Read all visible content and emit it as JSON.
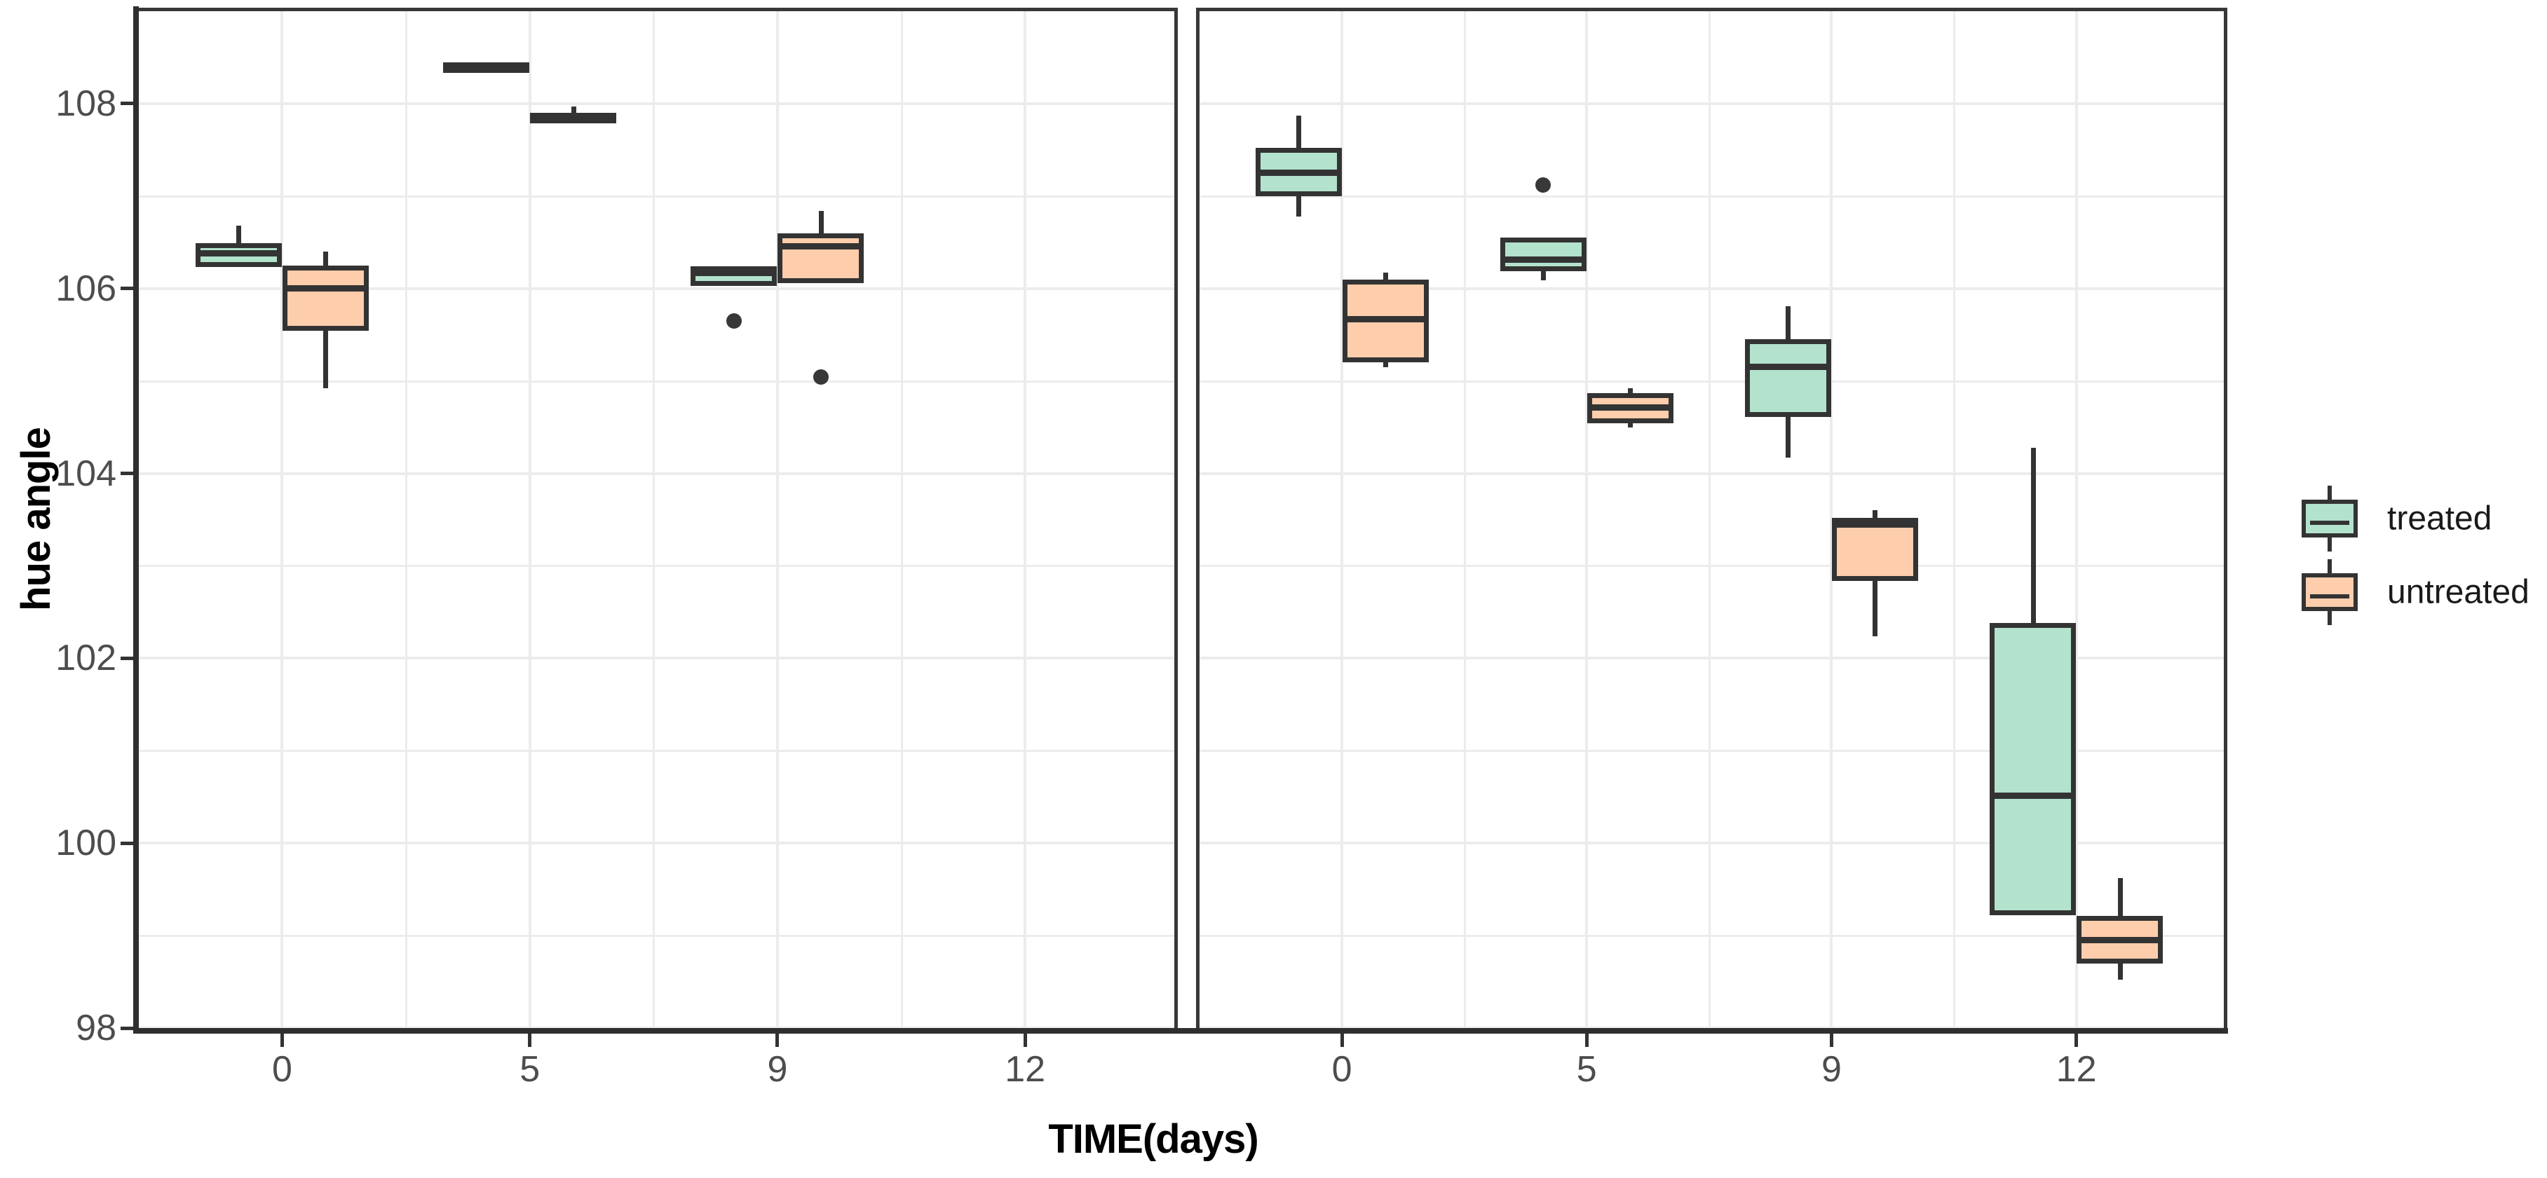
{
  "chart_data": {
    "type": "boxplot",
    "title": "",
    "xlabel": "TIME(days)",
    "ylabel": "hue angle",
    "ylim": [
      98,
      109
    ],
    "y_major_ticks": [
      "98",
      "100",
      "102",
      "104",
      "106",
      "108"
    ],
    "y_major_values": [
      98,
      100,
      102,
      104,
      106,
      108
    ],
    "y_minor_values": [
      99,
      101,
      103,
      105,
      107
    ],
    "categories": [
      "0",
      "5",
      "9",
      "12"
    ],
    "grid": true,
    "legend_position": "right",
    "legend": [
      {
        "label": "treated",
        "fill": "#B3E2CD"
      },
      {
        "label": "untreated",
        "fill": "#FDCDAC"
      }
    ],
    "style": {
      "box_outline": "#333333",
      "grid_color": "#ECECEC",
      "panel_border": "#383838",
      "axis_line": "#2F2F2F",
      "tick_text_color": "#4D4D4D",
      "title_text_color": "#000000",
      "background": "#FFFFFF"
    },
    "facets": [
      {
        "id": "panel-left",
        "series": [
          {
            "name": "treated",
            "fill": "#B3E2CD",
            "boxes": [
              {
                "category": "0",
                "whislo": 106.23,
                "q1": 106.23,
                "med": 106.38,
                "q3": 106.49,
                "whishi": 106.68,
                "fliers": []
              },
              {
                "category": "5",
                "whislo": 108.4,
                "q1": 108.4,
                "med": 108.42,
                "q3": 108.45,
                "whishi": 108.45,
                "fliers": []
              },
              {
                "category": "9",
                "whislo": 106.03,
                "q1": 106.03,
                "med": 106.19,
                "q3": 106.24,
                "whishi": 106.24,
                "fliers": [
                  105.65
                ]
              },
              null
            ]
          },
          {
            "name": "untreated",
            "fill": "#FDCDAC",
            "boxes": [
              {
                "category": "0",
                "whislo": 104.92,
                "q1": 105.54,
                "med": 106.0,
                "q3": 106.25,
                "whishi": 106.4,
                "fliers": []
              },
              {
                "category": "5",
                "whislo": 107.82,
                "q1": 107.83,
                "med": 107.86,
                "q3": 107.9,
                "whishi": 107.97,
                "fliers": []
              },
              {
                "category": "9",
                "whislo": 106.06,
                "q1": 106.06,
                "med": 106.46,
                "q3": 106.6,
                "whishi": 106.84,
                "fliers": [
                  105.04
                ]
              },
              null
            ]
          }
        ]
      },
      {
        "id": "panel-right",
        "series": [
          {
            "name": "treated",
            "fill": "#B3E2CD",
            "boxes": [
              {
                "category": "0",
                "whislo": 106.78,
                "q1": 107.0,
                "med": 107.25,
                "q3": 107.52,
                "whishi": 107.87,
                "fliers": []
              },
              {
                "category": "5",
                "whislo": 106.09,
                "q1": 106.19,
                "med": 106.31,
                "q3": 106.55,
                "whishi": 106.55,
                "fliers": [
                  107.12
                ]
              },
              {
                "category": "9",
                "whislo": 104.17,
                "q1": 104.61,
                "med": 105.15,
                "q3": 105.45,
                "whishi": 105.81,
                "fliers": []
              },
              {
                "category": "12",
                "whislo": 99.22,
                "q1": 99.22,
                "med": 100.51,
                "q3": 102.38,
                "whishi": 104.28,
                "fliers": []
              }
            ]
          },
          {
            "name": "untreated",
            "fill": "#FDCDAC",
            "boxes": [
              {
                "category": "0",
                "whislo": 105.15,
                "q1": 105.2,
                "med": 105.67,
                "q3": 106.1,
                "whishi": 106.17,
                "fliers": []
              },
              {
                "category": "5",
                "whislo": 104.5,
                "q1": 104.54,
                "med": 104.71,
                "q3": 104.87,
                "whishi": 104.92,
                "fliers": []
              },
              {
                "category": "9",
                "whislo": 102.24,
                "q1": 102.84,
                "med": 103.45,
                "q3": 103.52,
                "whishi": 103.6,
                "fliers": []
              },
              {
                "category": "12",
                "whislo": 98.52,
                "q1": 98.7,
                "med": 98.95,
                "q3": 99.21,
                "whishi": 99.62,
                "fliers": []
              }
            ]
          }
        ]
      }
    ]
  }
}
